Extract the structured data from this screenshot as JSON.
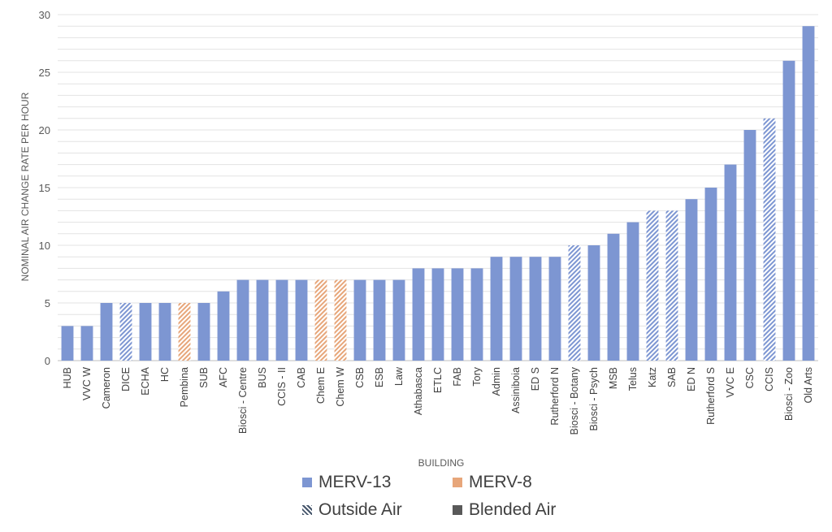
{
  "chart_data": {
    "type": "bar",
    "title": "",
    "xlabel": "BUILDING",
    "ylabel": "NOMINAL AIR CHANGE RATE PER HOUR",
    "ylim": [
      0,
      30
    ],
    "yticks": [
      0,
      5,
      10,
      15,
      20,
      25,
      30
    ],
    "grid": true,
    "legend_position": "bottom",
    "categories": [
      "HUB",
      "VVC W",
      "Cameron",
      "DICE",
      "ECHA",
      "HC",
      "Pembina",
      "SUB",
      "AFC",
      "Biosci - Centre",
      "BUS",
      "CCIS - II",
      "CAB",
      "Chem E",
      "Chem W",
      "CSB",
      "ESB",
      "Law",
      "Athabasca",
      "ETLC",
      "FAB",
      "Tory",
      "Admin",
      "Assiniboia",
      "ED S",
      "Rutherford N",
      "Biosci - Botany",
      "Biosci - Psych",
      "MSB",
      "Telus",
      "Katz",
      "SAB",
      "ED N",
      "Rutherford S",
      "VVC E",
      "CSC",
      "CCIS",
      "Biosci - Zoo",
      "Old Arts"
    ],
    "values": [
      3,
      3,
      5,
      5,
      5,
      5,
      5,
      5,
      6,
      7,
      7,
      7,
      7,
      7,
      7,
      7,
      7,
      7,
      8,
      8,
      8,
      8,
      9,
      9,
      9,
      9,
      10,
      10,
      11,
      12,
      13,
      13,
      14,
      15,
      17,
      20,
      21,
      26,
      29
    ],
    "filter": [
      "MERV-13",
      "MERV-13",
      "MERV-13",
      "MERV-13",
      "MERV-13",
      "MERV-13",
      "MERV-8",
      "MERV-13",
      "MERV-13",
      "MERV-13",
      "MERV-13",
      "MERV-13",
      "MERV-13",
      "MERV-8",
      "MERV-8",
      "MERV-13",
      "MERV-13",
      "MERV-13",
      "MERV-13",
      "MERV-13",
      "MERV-13",
      "MERV-13",
      "MERV-13",
      "MERV-13",
      "MERV-13",
      "MERV-13",
      "MERV-13",
      "MERV-13",
      "MERV-13",
      "MERV-13",
      "MERV-13",
      "MERV-13",
      "MERV-13",
      "MERV-13",
      "MERV-13",
      "MERV-13",
      "MERV-13",
      "MERV-13",
      "MERV-13"
    ],
    "air": [
      "Blended Air",
      "Blended Air",
      "Blended Air",
      "Outside Air",
      "Blended Air",
      "Blended Air",
      "Outside Air",
      "Blended Air",
      "Blended Air",
      "Blended Air",
      "Blended Air",
      "Blended Air",
      "Blended Air",
      "Outside Air",
      "Outside Air",
      "Blended Air",
      "Blended Air",
      "Blended Air",
      "Blended Air",
      "Blended Air",
      "Blended Air",
      "Blended Air",
      "Blended Air",
      "Blended Air",
      "Blended Air",
      "Blended Air",
      "Outside Air",
      "Blended Air",
      "Blended Air",
      "Blended Air",
      "Outside Air",
      "Outside Air",
      "Blended Air",
      "Blended Air",
      "Blended Air",
      "Blended Air",
      "Outside Air",
      "Blended Air",
      "Blended Air"
    ],
    "legend": [
      {
        "label": "MERV-13",
        "kind": "solid",
        "color": "#7d96d2"
      },
      {
        "label": "MERV-8",
        "kind": "solid",
        "color": "#e7a67a"
      },
      {
        "label": "Outside Air",
        "kind": "hatched",
        "color": "#44546a"
      },
      {
        "label": "Blended Air",
        "kind": "solid",
        "color": "#595959"
      }
    ],
    "colors": {
      "MERV-13": "#7d96d2",
      "MERV-8": "#e7a67a"
    }
  }
}
